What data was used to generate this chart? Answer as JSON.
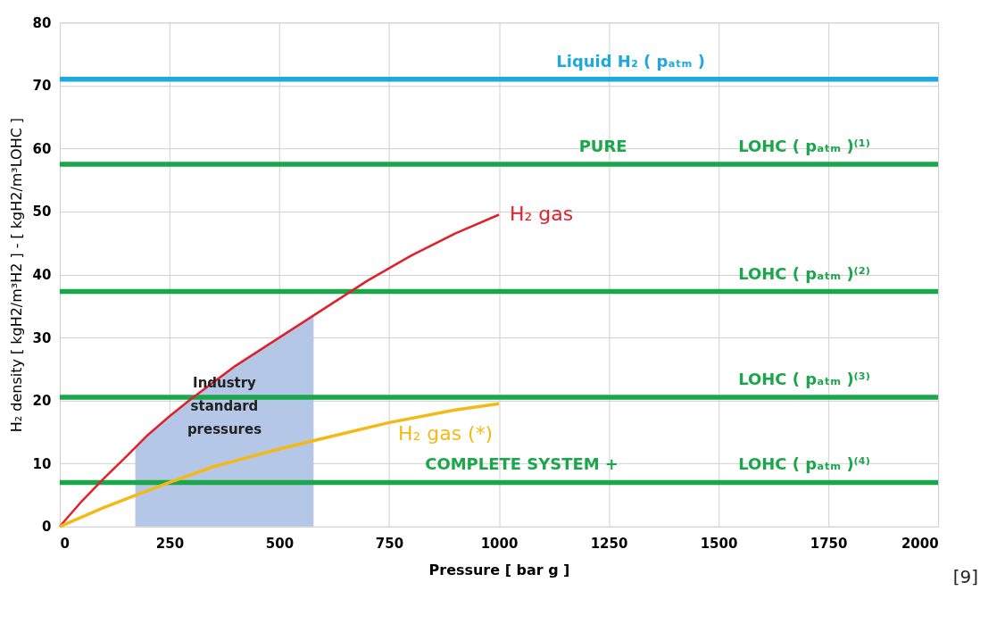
{
  "chart_data": {
    "type": "line",
    "xlabel": "Pressure   [ bar g ]",
    "ylabel": "H₂ density   [ kgH2/m³H2 ] - [ kgH2/m³LOHC ]",
    "xlim": [
      0,
      2000
    ],
    "xticks": [
      0,
      250,
      500,
      750,
      1000,
      1250,
      1500,
      1750,
      2000
    ],
    "ylim": [
      0,
      80
    ],
    "yticks": [
      0,
      10,
      20,
      30,
      40,
      50,
      60,
      70,
      80
    ],
    "grid": true,
    "marker": "none",
    "line_style": "solid",
    "series": [
      {
        "name": "Industry\nstandard\npressures",
        "type": "area",
        "color": "#b4c7e7",
        "x": [
          172,
          200,
          250,
          300,
          400,
          500,
          578
        ],
        "values": [
          12.5,
          14.5,
          17.5,
          20.3,
          25.5,
          30,
          33.5
        ]
      },
      {
        "name": "H₂ gas",
        "color": "#e0202a",
        "x": [
          0,
          50,
          100,
          150,
          200,
          250,
          300,
          400,
          500,
          600,
          700,
          800,
          900,
          1000
        ],
        "values": [
          0,
          4,
          7.6,
          11,
          14.5,
          17.5,
          20.3,
          25.5,
          30,
          34.5,
          39,
          43,
          46.5,
          49.5
        ]
      },
      {
        "name": "H₂ gas (*)",
        "color": "#f5b915",
        "x": [
          0,
          100,
          175,
          250,
          350,
          500,
          600,
          750,
          900,
          1000
        ],
        "values": [
          0,
          3,
          5,
          7,
          9.5,
          12.3,
          14,
          16.5,
          18.5,
          19.5
        ]
      }
    ],
    "ref_lines": [
      {
        "axis": "y",
        "value": 71,
        "color": "#1ca8e0"
      },
      {
        "axis": "y",
        "value": 57.5,
        "color": "#1aa64a"
      },
      {
        "axis": "y",
        "value": 37.3,
        "color": "#1aa64a"
      },
      {
        "axis": "y",
        "value": 20.5,
        "color": "#1aa64a"
      },
      {
        "axis": "y",
        "value": 7,
        "color": "#1aa64a"
      }
    ],
    "annotations": [
      {
        "text": "Liquid H₂ ( pₐₜₘ )",
        "x": 1300,
        "y": 71
      },
      {
        "text": "LOHC ( pₐₜₘ )⁽¹⁾",
        "x": 1695,
        "y": 57.5
      },
      {
        "text": "PURE",
        "x": 1237,
        "y": 57.5
      },
      {
        "text": "LOHC ( pₐₜₘ )⁽²⁾",
        "x": 1695,
        "y": 37.3
      },
      {
        "text": "LOHC ( pₐₜₘ )⁽³⁾",
        "x": 1695,
        "y": 20.5
      },
      {
        "text": "LOHC ( pₐₜₘ )⁽⁴⁾",
        "x": 1695,
        "y": 7
      },
      {
        "text": "COMPLETE SYSTEM +",
        "x": 1052,
        "y": 7
      },
      "[9]"
    ]
  }
}
